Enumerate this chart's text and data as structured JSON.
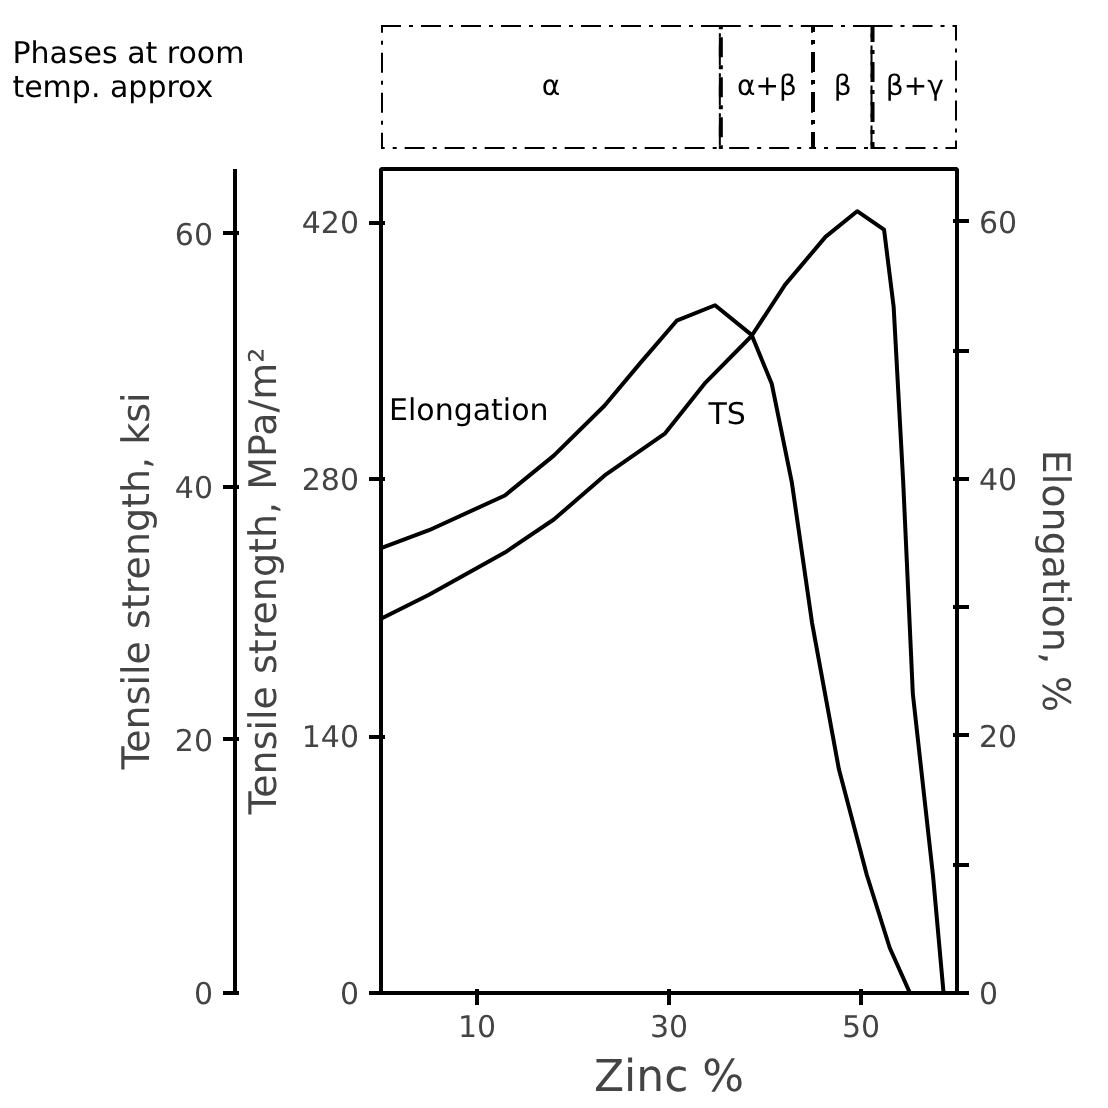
{
  "chart_data": [
    {
      "type": "bar",
      "orientation": "horizontal",
      "stacked": true,
      "ylabel": "Phases at room temp. approx",
      "categories": [
        null
      ],
      "xlim": [
        0,
        60
      ],
      "tick_labels": false,
      "grid": false,
      "series": [
        {
          "name": "α",
          "color": "#ffffff",
          "values": [
            35.4
          ]
        },
        {
          "name": "α+β",
          "color": "#ffffff",
          "values": [
            9.6
          ]
        },
        {
          "name": "β",
          "color": "#ffffff",
          "values": [
            6.2
          ]
        },
        {
          "name": "β+γ",
          "color": "#ffffff",
          "values": [
            8.8
          ]
        }
      ]
    },
    {
      "type": "line",
      "xlabel": "Zinc %",
      "ylabel": "Tensile strength, MPa/m²",
      "y2label": "Elongation, %",
      "y3label": "Tensile strength, ksi",
      "xlim": [
        0,
        60
      ],
      "xticks": [
        10,
        30,
        50
      ],
      "ylim": [
        0,
        449
      ],
      "yticks": [
        0,
        140,
        280,
        420
      ],
      "y2lim": [
        0,
        64.1
      ],
      "y2ticks": [
        0,
        {
          "value": 10,
          "label": null
        },
        20,
        {
          "value": 30,
          "label": null
        },
        40,
        {
          "value": 50,
          "label": null
        },
        60
      ],
      "y3lim": [
        0,
        65.1
      ],
      "y3ticks": [
        0,
        20,
        40,
        60
      ],
      "grid": false,
      "marker": "none",
      "line_style": "solid",
      "series": [
        {
          "name": "Elongation",
          "color": "#000000",
          "axis": "y2",
          "x": [
            0,
            5,
            12.9,
            18,
            23.3,
            27,
            30.8,
            34.8,
            38.6,
            40.7,
            42.8,
            44.9,
            47.7,
            50.6,
            53,
            55.1
          ],
          "values": [
            34.6,
            36,
            38.7,
            41.8,
            45.7,
            49,
            52.3,
            53.5,
            51.2,
            47.4,
            39.7,
            28.8,
            17.4,
            9.2,
            3.5,
            0
          ]
        },
        {
          "name": "TS",
          "color": "#000000",
          "x": [
            0,
            5,
            12.9,
            18,
            23.3,
            29.6,
            33.7,
            38.6,
            42.1,
            46.3,
            49.6,
            52.4,
            53.4,
            54.4,
            55.4,
            57.5,
            58.6
          ],
          "values": [
            204,
            217,
            240,
            258,
            282,
            305,
            332,
            358,
            386,
            412,
            426,
            416,
            374,
            278,
            163,
            64,
            0
          ]
        }
      ]
    }
  ]
}
